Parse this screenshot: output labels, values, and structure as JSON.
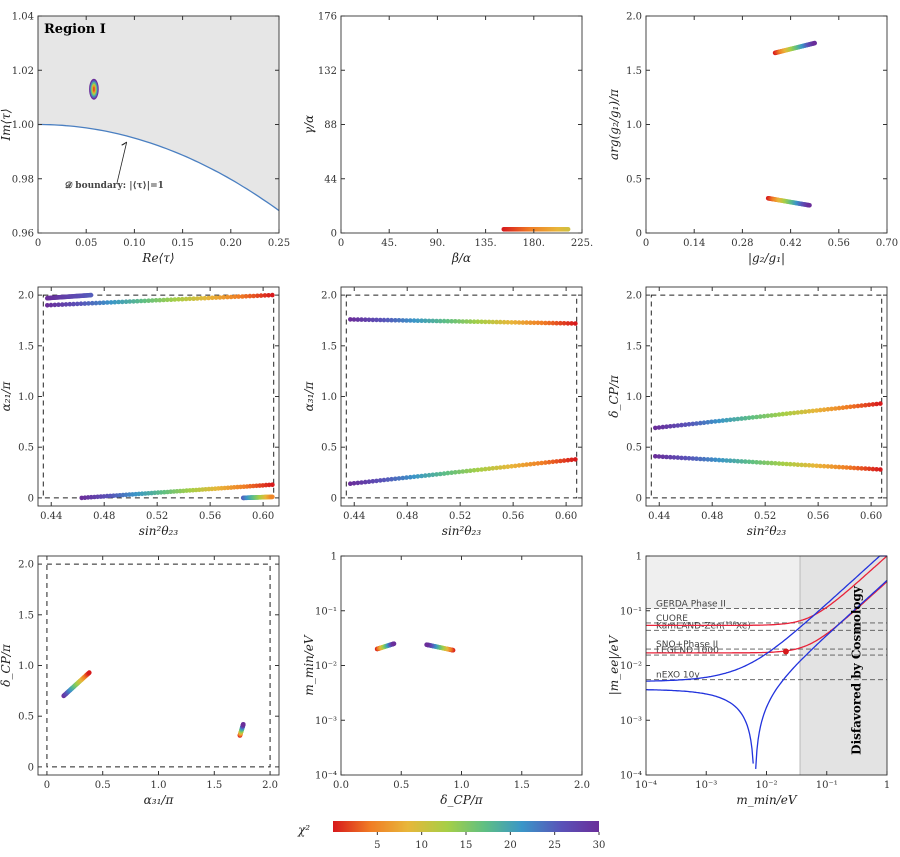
{
  "title": "Region I",
  "colorbar": {
    "label": "χ²",
    "ticks": [
      "5",
      "10",
      "15",
      "20",
      "25",
      "30"
    ],
    "range": [
      0,
      30
    ],
    "colors": [
      "#d7191c",
      "#f07c24",
      "#e8b63a",
      "#a6cf46",
      "#5fbf83",
      "#3a96c8",
      "#5a52b8",
      "#6a2e9a"
    ]
  },
  "chart_data": [
    {
      "id": "p1",
      "type": "scatter",
      "title": "Region I",
      "xlabel": "Re⟨τ⟩",
      "ylabel": "Im⟨τ⟩",
      "xlim": [
        0,
        0.25
      ],
      "ylim": [
        0.96,
        1.04
      ],
      "xticks": [
        "0",
        "0.05",
        "0.10",
        "0.15",
        "0.20",
        "0.25"
      ],
      "yticks": [
        "0.96",
        "0.98",
        "1.00",
        "1.02",
        "1.04"
      ],
      "annotation": "𝒟 boundary: |⟨τ⟩|=1",
      "clusters": [
        {
          "x": 0.058,
          "y": 1.013,
          "rx": 0.005,
          "ry": 0.0035,
          "chi": [
            0,
            30
          ]
        }
      ]
    },
    {
      "id": "p2",
      "type": "scatter",
      "xlabel": "β/α",
      "ylabel": "γ/α",
      "xlim": [
        0,
        225
      ],
      "ylim": [
        0,
        176
      ],
      "xticks": [
        "0",
        "45.",
        "90.",
        "135.",
        "180.",
        "225."
      ],
      "yticks": [
        "0",
        "44",
        "88",
        "132",
        "176"
      ],
      "series": [
        {
          "x0": 152,
          "y0": 3,
          "x1": 212,
          "y1": 3,
          "chi": [
            0,
            10
          ]
        }
      ]
    },
    {
      "id": "p3",
      "type": "scatter",
      "xlabel": "|g₂/g₁|",
      "ylabel": "arg(g₂/g₁)/π",
      "xlim": [
        0,
        0.7
      ],
      "ylim": [
        0,
        2
      ],
      "xticks": [
        "0",
        "0.14",
        "0.28",
        "0.42",
        "0.56",
        "0.70"
      ],
      "yticks": [
        "0",
        "0.5",
        "1.0",
        "1.5",
        "2.0"
      ],
      "series": [
        {
          "x0": 0.375,
          "y0": 1.66,
          "x1": 0.49,
          "y1": 1.75,
          "chi": [
            0,
            30
          ]
        },
        {
          "x0": 0.355,
          "y0": 0.32,
          "x1": 0.475,
          "y1": 0.255,
          "chi": [
            0,
            30
          ]
        }
      ]
    },
    {
      "id": "p4",
      "type": "scatter",
      "xlabel": "sin²θ₂₃",
      "ylabel": "α₂₁/π",
      "xlim": [
        0.43,
        0.612
      ],
      "ylim": [
        -0.08,
        2.08
      ],
      "xticks": [
        "0.44",
        "0.48",
        "0.52",
        "0.56",
        "0.60"
      ],
      "yticks": [
        "0",
        "0.5",
        "1.0",
        "1.5",
        "2.0"
      ],
      "box": [
        0.434,
        0.608,
        0,
        2
      ],
      "series": [
        {
          "x0": 0.437,
          "y0": 1.9,
          "x1": 0.607,
          "y1": 2.0,
          "chi": [
            30,
            0
          ]
        },
        {
          "x0": 0.437,
          "y0": 1.97,
          "x1": 0.47,
          "y1": 2.0,
          "chi": [
            30,
            25
          ]
        },
        {
          "x0": 0.463,
          "y0": 0.0,
          "x1": 0.607,
          "y1": 0.13,
          "chi": [
            30,
            0
          ]
        },
        {
          "x0": 0.585,
          "y0": 0.0,
          "x1": 0.607,
          "y1": 0.01,
          "chi": [
            25,
            5
          ]
        }
      ]
    },
    {
      "id": "p5",
      "type": "scatter",
      "xlabel": "sin²θ₂₃",
      "ylabel": "α₃₁/π",
      "xlim": [
        0.43,
        0.612
      ],
      "ylim": [
        -0.08,
        2.08
      ],
      "xticks": [
        "0.44",
        "0.48",
        "0.52",
        "0.56",
        "0.60"
      ],
      "yticks": [
        "0",
        "0.5",
        "1.0",
        "1.5",
        "2.0"
      ],
      "box": [
        0.434,
        0.608,
        0,
        2
      ],
      "series": [
        {
          "x0": 0.437,
          "y0": 1.76,
          "x1": 0.607,
          "y1": 1.72,
          "chi": [
            30,
            0
          ]
        },
        {
          "x0": 0.437,
          "y0": 0.14,
          "x1": 0.607,
          "y1": 0.38,
          "chi": [
            30,
            0
          ]
        }
      ]
    },
    {
      "id": "p6",
      "type": "scatter",
      "xlabel": "sin²θ₂₃",
      "ylabel": "δ_CP/π",
      "xlim": [
        0.43,
        0.612
      ],
      "ylim": [
        -0.08,
        2.08
      ],
      "xticks": [
        "0.44",
        "0.48",
        "0.52",
        "0.56",
        "0.60"
      ],
      "yticks": [
        "0",
        "0.5",
        "1.0",
        "1.5",
        "2.0"
      ],
      "box": [
        0.434,
        0.608,
        0,
        2
      ],
      "series": [
        {
          "x0": 0.437,
          "y0": 0.69,
          "x1": 0.607,
          "y1": 0.93,
          "chi": [
            30,
            0
          ]
        },
        {
          "x0": 0.437,
          "y0": 0.41,
          "x1": 0.607,
          "y1": 0.28,
          "chi": [
            30,
            0
          ]
        }
      ]
    },
    {
      "id": "p7",
      "type": "scatter",
      "xlabel": "α₃₁/π",
      "ylabel": "δ_CP/π",
      "xlim": [
        -0.08,
        2.08
      ],
      "ylim": [
        -0.08,
        2.08
      ],
      "xticks": [
        "0",
        "0.5",
        "1.0",
        "1.5",
        "2.0"
      ],
      "yticks": [
        "0",
        "0.5",
        "1.0",
        "1.5",
        "2.0"
      ],
      "box": [
        0,
        2,
        0,
        2
      ],
      "series": [
        {
          "x0": 0.15,
          "y0": 0.7,
          "x1": 0.38,
          "y1": 0.93,
          "chi": [
            30,
            0
          ]
        },
        {
          "x0": 1.73,
          "y0": 0.31,
          "x1": 1.76,
          "y1": 0.42,
          "chi": [
            0,
            30
          ]
        }
      ]
    },
    {
      "id": "p8",
      "type": "scatter",
      "xlabel": "δ_CP/π",
      "ylabel": "m_min/eV",
      "xlim": [
        0,
        2
      ],
      "ylim": [
        0.0001,
        1
      ],
      "yscale": "log",
      "xticks": [
        "0.0",
        "0.5",
        "1.0",
        "1.5",
        "2.0"
      ],
      "ylogticks": [
        -4,
        -3,
        -2,
        -1,
        0
      ],
      "series": [
        {
          "x0": 0.3,
          "y0": 0.02,
          "x1": 0.44,
          "y1": 0.025,
          "chi": [
            0,
            30
          ]
        },
        {
          "x0": 0.93,
          "y0": 0.019,
          "x1": 0.71,
          "y1": 0.024,
          "chi": [
            0,
            30
          ]
        }
      ]
    },
    {
      "id": "p9",
      "type": "line",
      "xlabel": "m_min/eV",
      "ylabel": "|m_ee|/eV",
      "xlim": [
        0.0001,
        1
      ],
      "ylim": [
        0.0001,
        1
      ],
      "xscale": "log",
      "yscale": "log",
      "xlogticks": [
        -4,
        -3,
        -2,
        -1,
        0
      ],
      "ylogticks": [
        -4,
        -3,
        -2,
        -1,
        0
      ],
      "shaded_from_x": 0.036,
      "shaded_label": "Disfavored by Cosmology",
      "limits": [
        {
          "label": "GERDA Phase II",
          "value": 0.11
        },
        {
          "label": "CUORE",
          "value": 0.06
        },
        {
          "label": "KamLAND-Zen(¹³⁶Xe)",
          "value": 0.044
        },
        {
          "label": "SNO+Phase II",
          "value": 0.02
        },
        {
          "label": "LEGEND 1000",
          "value": 0.0155
        },
        {
          "label": "nEXO 10y",
          "value": 0.0055
        }
      ],
      "point": {
        "x": 0.021,
        "y": 0.018
      }
    }
  ]
}
